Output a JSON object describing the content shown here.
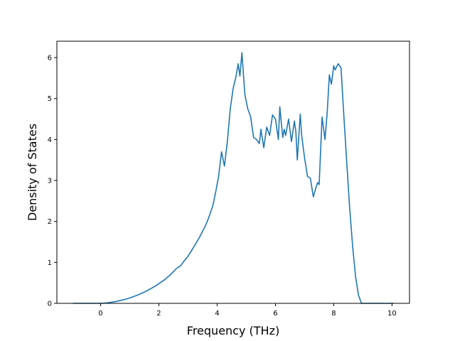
{
  "chart_data": {
    "type": "line",
    "title": "",
    "xlabel": "Frequency (THz)",
    "ylabel": "Density of States",
    "xlim": [
      -1.5,
      10.6
    ],
    "ylim": [
      0,
      6.4
    ],
    "xticks": [
      0,
      2,
      4,
      6,
      8,
      10
    ],
    "yticks": [
      0,
      1,
      2,
      3,
      4,
      5,
      6
    ],
    "grid": false,
    "legend": "none",
    "color": "#1f77b4",
    "series": [
      {
        "x": [
          -0.95,
          0.0,
          0.2,
          0.5,
          0.8,
          1.0,
          1.3,
          1.6,
          1.9,
          2.2,
          2.4,
          2.6,
          2.75,
          2.85,
          3.0,
          3.2,
          3.4,
          3.6,
          3.7,
          3.85,
          3.95,
          4.05,
          4.15,
          4.25,
          4.35,
          4.45,
          4.55,
          4.65,
          4.72,
          4.78,
          4.85,
          4.95,
          5.05,
          5.15,
          5.25,
          5.35,
          5.45,
          5.5,
          5.6,
          5.7,
          5.8,
          5.9,
          6.0,
          6.1,
          6.15,
          6.25,
          6.3,
          6.35,
          6.45,
          6.55,
          6.65,
          6.7,
          6.75,
          6.85,
          6.9,
          7.0,
          7.1,
          7.2,
          7.3,
          7.4,
          7.45,
          7.5,
          7.6,
          7.7,
          7.78,
          7.85,
          7.92,
          8.0,
          8.05,
          8.15,
          8.25,
          8.35,
          8.45,
          8.55,
          8.65,
          8.75,
          8.85,
          8.95,
          9.05,
          9.12,
          9.2,
          10.05
        ],
        "y": [
          0,
          0,
          0.01,
          0.04,
          0.09,
          0.13,
          0.21,
          0.31,
          0.43,
          0.58,
          0.7,
          0.85,
          0.92,
          1.02,
          1.15,
          1.38,
          1.62,
          1.9,
          2.07,
          2.38,
          2.72,
          3.1,
          3.7,
          3.35,
          3.95,
          4.75,
          5.25,
          5.55,
          5.85,
          5.55,
          6.12,
          5.1,
          4.75,
          4.55,
          4.05,
          4.0,
          3.9,
          4.25,
          3.8,
          4.3,
          4.1,
          4.6,
          4.5,
          4.0,
          4.8,
          4.05,
          4.25,
          4.1,
          4.5,
          3.95,
          4.45,
          4.2,
          3.5,
          4.62,
          4.1,
          3.55,
          3.1,
          3.05,
          2.6,
          2.85,
          2.95,
          2.9,
          4.55,
          4.0,
          4.7,
          5.58,
          5.35,
          5.8,
          5.7,
          5.85,
          5.75,
          4.55,
          3.4,
          2.3,
          1.38,
          0.65,
          0.2,
          0.0,
          0.0,
          0.0,
          0.0,
          0.0
        ]
      }
    ]
  }
}
